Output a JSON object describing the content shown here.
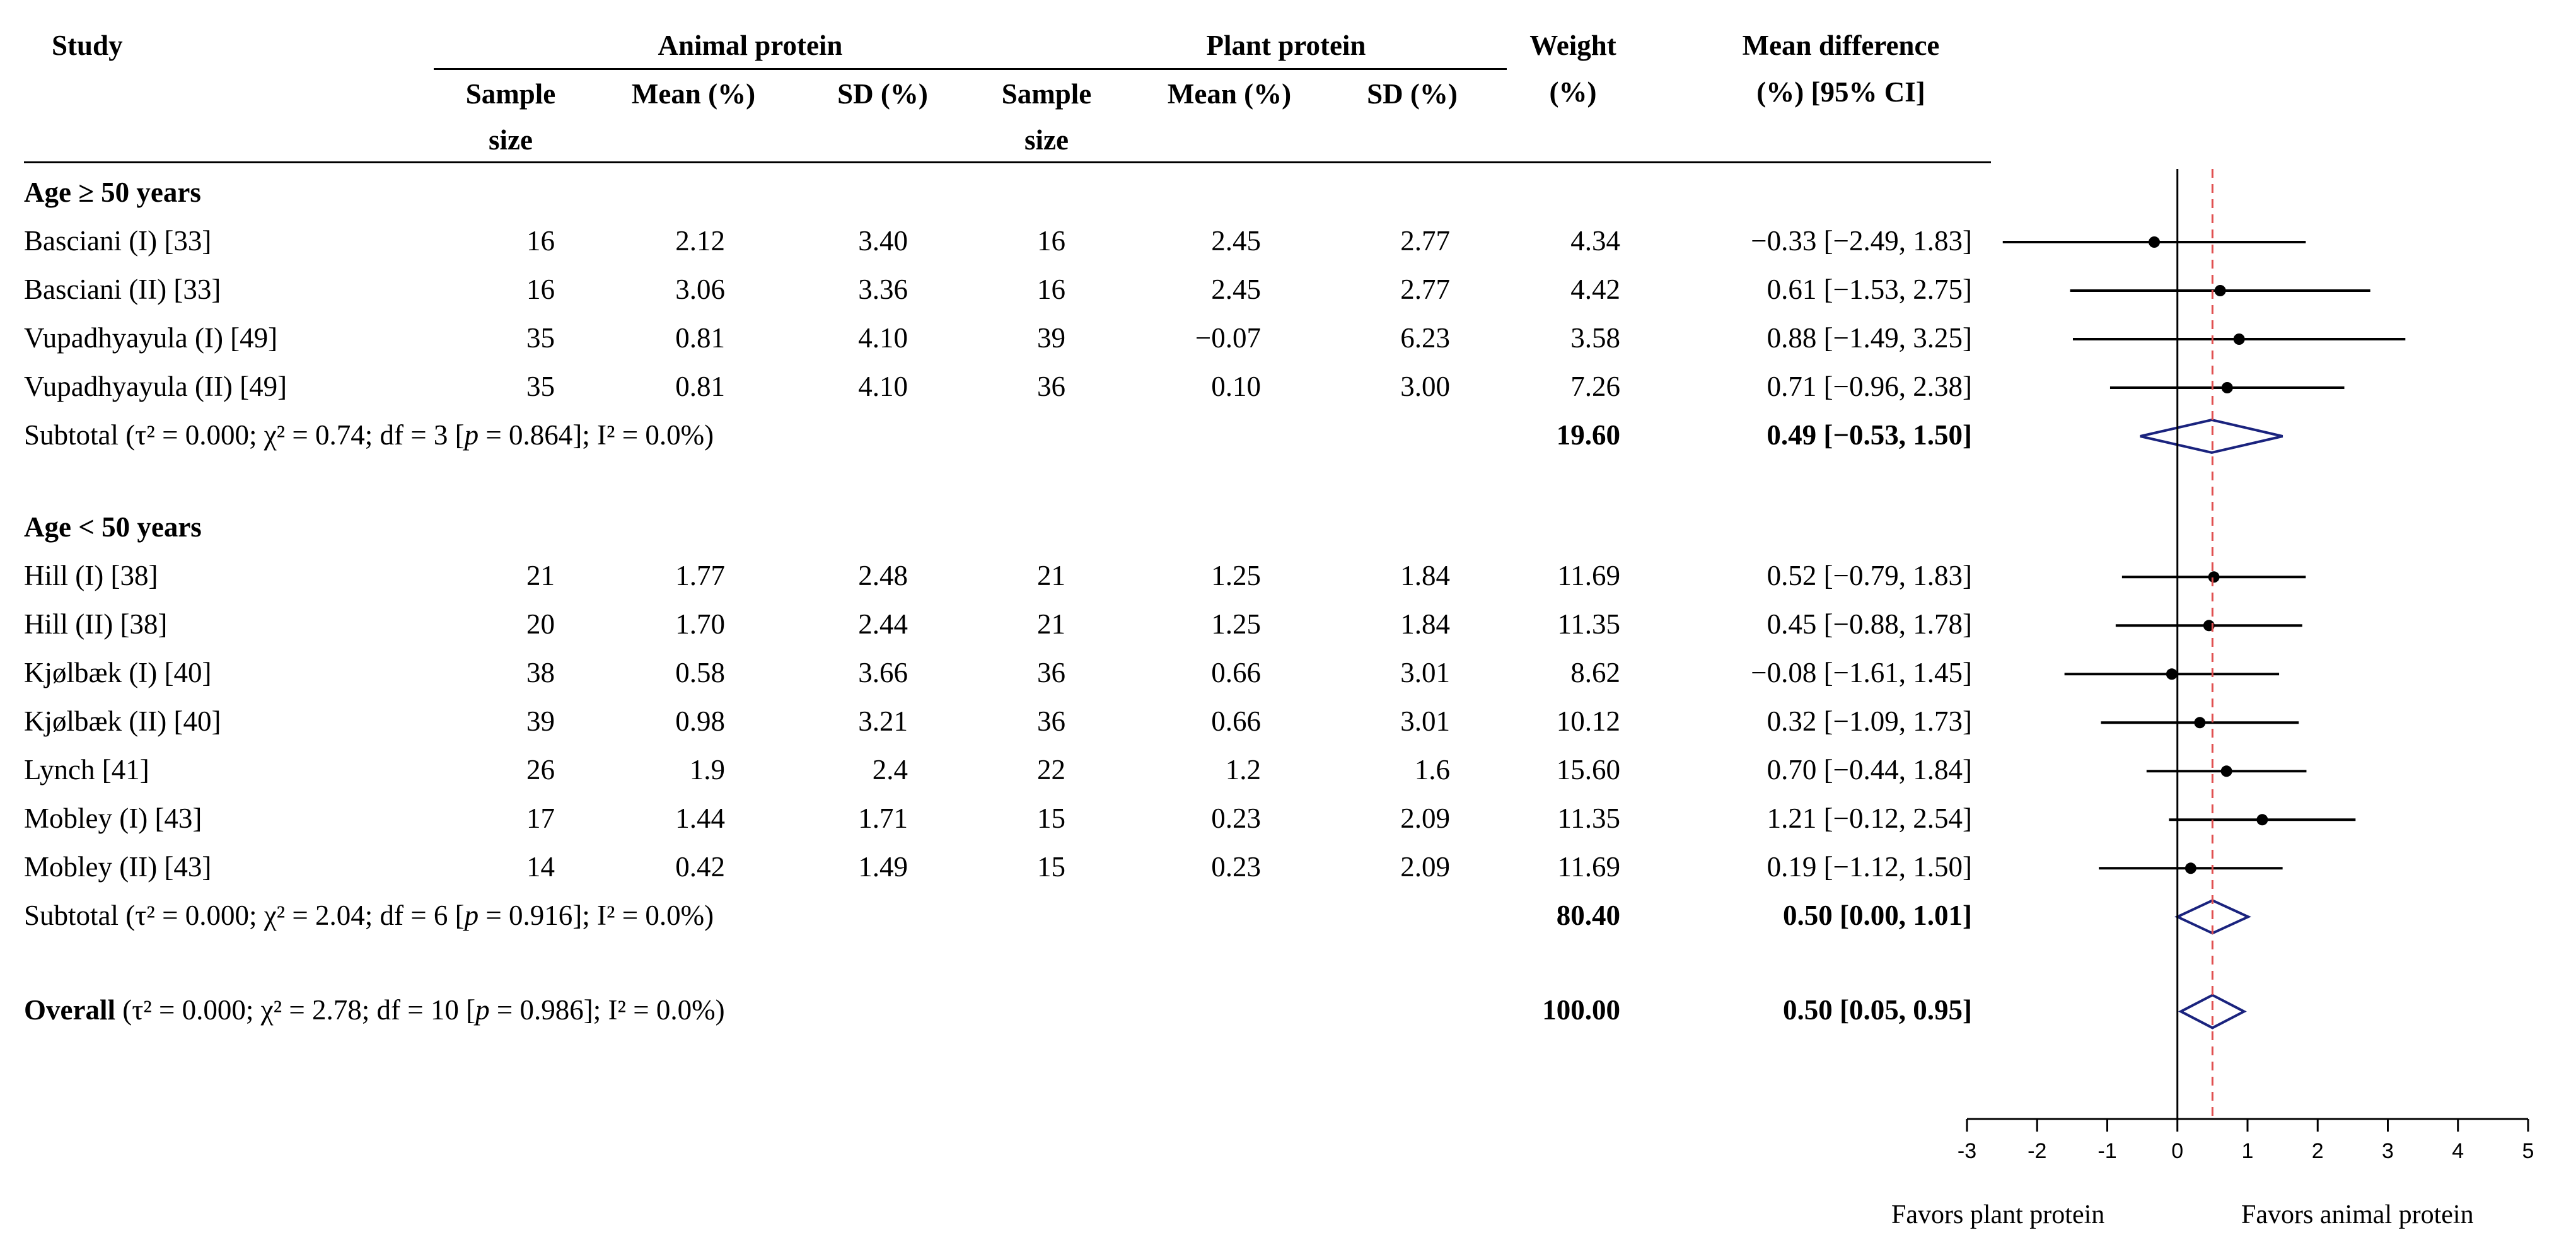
{
  "chart_data": {
    "type": "forest",
    "columns": {
      "study": "Study",
      "group_a": "Animal protein",
      "group_b": "Plant protein",
      "sample_size": "Sample",
      "sample_size_2": "size",
      "mean": "Mean (%)",
      "sd": "SD (%)",
      "weight": "Weight",
      "weight_unit": "(%)",
      "md": "Mean difference",
      "md_sub": "(%) [95% CI]"
    },
    "groups": [
      {
        "label": "Age ≥ 50 years",
        "studies": [
          {
            "name": "Basciani (I) [33]",
            "n1": "16",
            "m1": "2.12",
            "sd1": "3.40",
            "n2": "16",
            "m2": "2.45",
            "sd2": "2.77",
            "weight": "4.34",
            "ci_text": "−0.33 [−2.49, 1.83]",
            "md": -0.33,
            "lo": -2.49,
            "hi": 1.83
          },
          {
            "name": "Basciani (II) [33]",
            "n1": "16",
            "m1": "3.06",
            "sd1": "3.36",
            "n2": "16",
            "m2": "2.45",
            "sd2": "2.77",
            "weight": "4.42",
            "ci_text": "0.61 [−1.53, 2.75]",
            "md": 0.61,
            "lo": -1.53,
            "hi": 2.75
          },
          {
            "name": "Vupadhyayula (I) [49]",
            "n1": "35",
            "m1": "0.81",
            "sd1": "4.10",
            "n2": "39",
            "m2": "−0.07",
            "sd2": "6.23",
            "weight": "3.58",
            "ci_text": "0.88 [−1.49, 3.25]",
            "md": 0.88,
            "lo": -1.49,
            "hi": 3.25
          },
          {
            "name": "Vupadhyayula (II) [49]",
            "n1": "35",
            "m1": "0.81",
            "sd1": "4.10",
            "n2": "36",
            "m2": "0.10",
            "sd2": "3.00",
            "weight": "7.26",
            "ci_text": "0.71 [−0.96, 2.38]",
            "md": 0.71,
            "lo": -0.96,
            "hi": 2.38
          }
        ],
        "subtotal": {
          "label": "Subtotal (τ² = 0.000; χ² = 0.74; df = 3 [p = 0.864]; I² = 0.0%)",
          "weight": "19.60",
          "ci_text": "0.49 [−0.53, 1.50]",
          "md": 0.49,
          "lo": -0.53,
          "hi": 1.5
        }
      },
      {
        "label": "Age < 50 years",
        "studies": [
          {
            "name": "Hill (I) [38]",
            "n1": "21",
            "m1": "1.77",
            "sd1": "2.48",
            "n2": "21",
            "m2": "1.25",
            "sd2": "1.84",
            "weight": "11.69",
            "ci_text": "0.52 [−0.79, 1.83]",
            "md": 0.52,
            "lo": -0.79,
            "hi": 1.83
          },
          {
            "name": "Hill (II) [38]",
            "n1": "20",
            "m1": "1.70",
            "sd1": "2.44",
            "n2": "21",
            "m2": "1.25",
            "sd2": "1.84",
            "weight": "11.35",
            "ci_text": "0.45 [−0.88, 1.78]",
            "md": 0.45,
            "lo": -0.88,
            "hi": 1.78
          },
          {
            "name": "Kjølbæk (I) [40]",
            "n1": "38",
            "m1": "0.58",
            "sd1": "3.66",
            "n2": "36",
            "m2": "0.66",
            "sd2": "3.01",
            "weight": "8.62",
            "ci_text": "−0.08 [−1.61, 1.45]",
            "md": -0.08,
            "lo": -1.61,
            "hi": 1.45
          },
          {
            "name": "Kjølbæk (II) [40]",
            "n1": "39",
            "m1": "0.98",
            "sd1": "3.21",
            "n2": "36",
            "m2": "0.66",
            "sd2": "3.01",
            "weight": "10.12",
            "ci_text": "0.32 [−1.09, 1.73]",
            "md": 0.32,
            "lo": -1.09,
            "hi": 1.73
          },
          {
            "name": "Lynch [41]",
            "n1": "26",
            "m1": "1.9",
            "sd1": "2.4",
            "n2": "22",
            "m2": "1.2",
            "sd2": "1.6",
            "weight": "15.60",
            "ci_text": "0.70 [−0.44, 1.84]",
            "md": 0.7,
            "lo": -0.44,
            "hi": 1.84
          },
          {
            "name": "Mobley (I) [43]",
            "n1": "17",
            "m1": "1.44",
            "sd1": "1.71",
            "n2": "15",
            "m2": "0.23",
            "sd2": "2.09",
            "weight": "11.35",
            "ci_text": "1.21 [−0.12, 2.54]",
            "md": 1.21,
            "lo": -0.12,
            "hi": 2.54
          },
          {
            "name": "Mobley (II) [43]",
            "n1": "14",
            "m1": "0.42",
            "sd1": "1.49",
            "n2": "15",
            "m2": "0.23",
            "sd2": "2.09",
            "weight": "11.69",
            "ci_text": "0.19 [−1.12, 1.50]",
            "md": 0.19,
            "lo": -1.12,
            "hi": 1.5
          }
        ],
        "subtotal": {
          "label": "Subtotal (τ² = 0.000; χ² = 2.04; df = 6 [p = 0.916]; I² = 0.0%)",
          "weight": "80.40",
          "ci_text": "0.50 [0.00, 1.01]",
          "md": 0.5,
          "lo": 0.0,
          "hi": 1.01
        }
      }
    ],
    "overall": {
      "label_bold": "Overall",
      "label_rest": " (τ² = 0.000; χ² = 2.78; df = 10 [p = 0.986]; I² = 0.0%)",
      "weight": "100.00",
      "ci_text": "0.50 [0.05, 0.95]",
      "md": 0.5,
      "lo": 0.05,
      "hi": 0.95
    },
    "axis": {
      "xlim": [
        -3,
        5
      ],
      "ticks": [
        "-3",
        "-2",
        "-1",
        "0",
        "1",
        "2",
        "3",
        "4",
        "5"
      ],
      "reference_line": 0,
      "pooled_line": 0.5,
      "left_label": "Favors plant protein",
      "right_label": "Favors animal protein"
    },
    "colors": {
      "diamond": "#1a237e",
      "pooled_line": "#e05050",
      "marks": "#000000"
    }
  }
}
